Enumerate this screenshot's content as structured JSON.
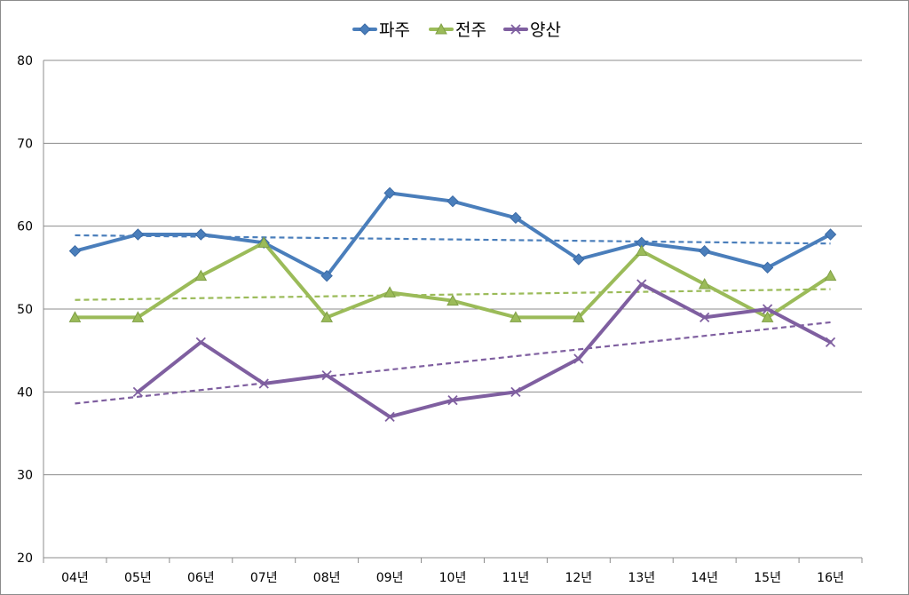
{
  "chart_data": {
    "type": "line",
    "categories": [
      "04년",
      "05년",
      "06년",
      "07년",
      "08년",
      "09년",
      "10년",
      "11년",
      "12년",
      "13년",
      "14년",
      "15년",
      "16년"
    ],
    "ylim": [
      20,
      80
    ],
    "yticks": [
      "20",
      "30",
      "40",
      "50",
      "60",
      "70",
      "80"
    ],
    "grid": "horizontal",
    "legend": "top-center",
    "series": [
      {
        "name": "파주",
        "color": "#4a7ebb",
        "marker": "diamond",
        "values": [
          57,
          59,
          59,
          58,
          54,
          64,
          63,
          61,
          56,
          58,
          57,
          55,
          59
        ],
        "trendline": [
          58.9,
          57.9
        ]
      },
      {
        "name": "전주",
        "color": "#9bbb59",
        "marker": "triangle",
        "values": [
          49,
          49,
          54,
          58,
          49,
          52,
          51,
          49,
          49,
          57,
          53,
          49,
          54
        ],
        "trendline": [
          51.1,
          52.4
        ]
      },
      {
        "name": "양산",
        "color": "#7f5fa0",
        "marker": "x",
        "values": [
          null,
          40,
          46,
          41,
          42,
          37,
          39,
          40,
          44,
          53,
          49,
          50,
          46
        ],
        "trendline": [
          38.6,
          48.4
        ]
      }
    ]
  }
}
